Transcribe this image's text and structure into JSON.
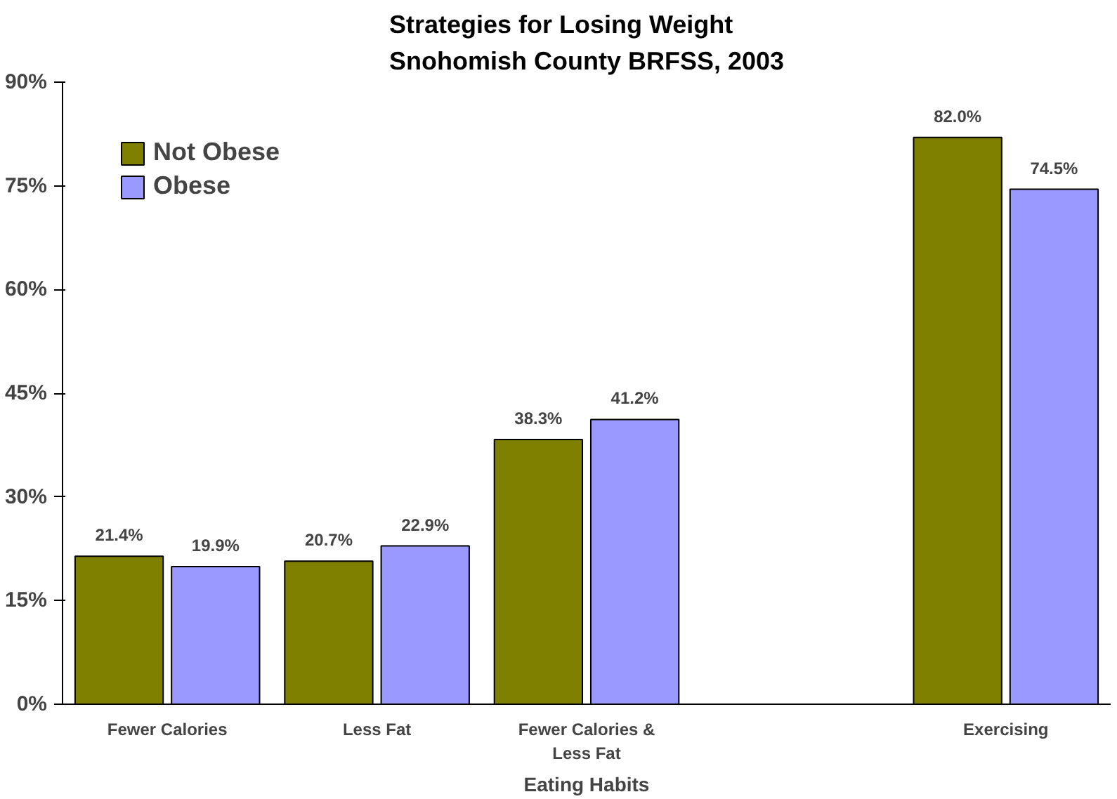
{
  "chart_data": {
    "type": "bar",
    "title": "Strategies for Losing Weight\nSnohomish County BRFSS, 2003",
    "xlabel": "Eating Habits",
    "categories": [
      "Fewer Calories",
      "Less Fat",
      "Fewer Calories & Less Fat",
      null,
      "Exercising"
    ],
    "series": [
      {
        "name": "Not Obese",
        "color": "#808000",
        "values": [
          21.4,
          20.7,
          38.3,
          null,
          82.0
        ],
        "value_labels": [
          "21.4%",
          "20.7%",
          "38.3%",
          null,
          "82.0%"
        ]
      },
      {
        "name": "Obese",
        "color": "#9999ff",
        "values": [
          19.9,
          22.9,
          41.2,
          null,
          74.5
        ],
        "value_labels": [
          "19.9%",
          "22.9%",
          "41.2%",
          null,
          "74.5%"
        ]
      }
    ],
    "ylim": [
      0,
      90
    ],
    "yticks": [
      {
        "value": 0,
        "label": "0%"
      },
      {
        "value": 15,
        "label": "15%"
      },
      {
        "value": 30,
        "label": "30%"
      },
      {
        "value": 45,
        "label": "45%"
      },
      {
        "value": 60,
        "label": "60%"
      },
      {
        "value": 75,
        "label": "75%"
      },
      {
        "value": 90,
        "label": "90%"
      }
    ],
    "grid": false,
    "legend": "top left"
  }
}
